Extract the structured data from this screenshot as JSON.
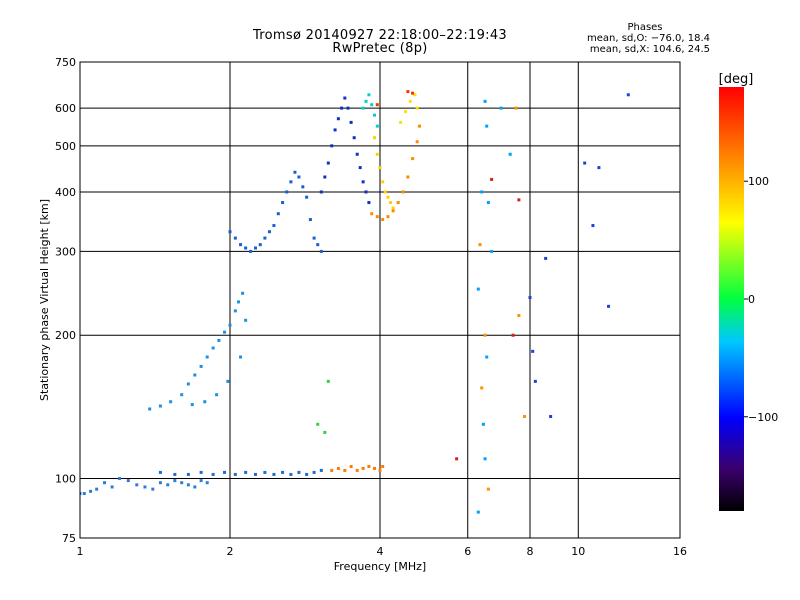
{
  "header": {
    "title": "Tromsø 20140927 22:18:00–22:19:43",
    "subtitle": "RwPretec (8p)"
  },
  "stats": {
    "heading": "Phases",
    "line_o": "mean, sd,O: −76.0, 18.4",
    "line_x": "mean, sd,X: 104.6, 24.5"
  },
  "chart_data": {
    "type": "scatter",
    "xlabel": "Frequency [MHz]",
    "ylabel": "Stationary phase Virtual Height [km]",
    "x_scale": "log",
    "y_scale": "log",
    "xlim": [
      1,
      16
    ],
    "ylim": [
      75,
      750
    ],
    "x_ticks": [
      1,
      2,
      4,
      6,
      8,
      10,
      16
    ],
    "x_tick_labels": [
      "1",
      "2",
      "4",
      "6",
      "8",
      "10",
      "16"
    ],
    "y_ticks": [
      75,
      100,
      200,
      300,
      400,
      500,
      600,
      750
    ],
    "y_tick_labels": [
      "75",
      "100",
      "200",
      "300",
      "400",
      "500",
      "600",
      "750"
    ],
    "x_gridlines": [
      2,
      4,
      6,
      8,
      10
    ],
    "y_gridlines": [
      100,
      200,
      300,
      400,
      500,
      600
    ],
    "colorbar": {
      "label": "[deg]",
      "range": [
        -180,
        180
      ],
      "ticks": [
        100,
        0,
        -100
      ],
      "tick_labels": [
        "100",
        "0",
        "−100"
      ],
      "colors": [
        "#000000",
        "#3a006e",
        "#0000ff",
        "#00c8ff",
        "#00ff40",
        "#ffff00",
        "#ff8000",
        "#ff0000"
      ]
    },
    "series": [
      {
        "color": "#2a7fd4",
        "points": [
          [
            1.0,
            93
          ],
          [
            1.02,
            93
          ],
          [
            1.05,
            94
          ],
          [
            1.08,
            95
          ],
          [
            1.12,
            98
          ],
          [
            1.16,
            96
          ],
          [
            1.2,
            100
          ],
          [
            1.25,
            99
          ],
          [
            1.3,
            97
          ],
          [
            1.35,
            96
          ],
          [
            1.4,
            95
          ],
          [
            1.45,
            98
          ],
          [
            1.5,
            97
          ],
          [
            1.55,
            99
          ],
          [
            1.6,
            98
          ],
          [
            1.65,
            97
          ],
          [
            1.7,
            96
          ],
          [
            1.75,
            99
          ],
          [
            1.8,
            98
          ]
        ]
      },
      {
        "color": "#1f6ccf",
        "points": [
          [
            1.45,
            103
          ],
          [
            1.55,
            102
          ],
          [
            1.65,
            102
          ],
          [
            1.75,
            103
          ],
          [
            1.85,
            102
          ],
          [
            1.95,
            103
          ],
          [
            2.05,
            102
          ],
          [
            2.15,
            103
          ],
          [
            2.25,
            102
          ],
          [
            2.35,
            103
          ],
          [
            2.45,
            102
          ],
          [
            2.55,
            103
          ],
          [
            2.65,
            102
          ],
          [
            2.75,
            103
          ],
          [
            2.85,
            102
          ],
          [
            2.95,
            103
          ],
          [
            3.05,
            104
          ]
        ]
      },
      {
        "color": "#ff7a00",
        "points": [
          [
            3.2,
            104
          ],
          [
            3.3,
            105
          ],
          [
            3.4,
            104
          ],
          [
            3.5,
            106
          ],
          [
            3.6,
            104
          ],
          [
            3.7,
            105
          ],
          [
            3.8,
            106
          ],
          [
            3.9,
            105
          ],
          [
            4.0,
            104
          ],
          [
            4.05,
            106
          ]
        ]
      },
      {
        "color": "#1e90e0",
        "points": [
          [
            1.38,
            140
          ],
          [
            1.45,
            142
          ],
          [
            1.52,
            145
          ],
          [
            1.6,
            150
          ],
          [
            1.65,
            158
          ],
          [
            1.7,
            165
          ],
          [
            1.75,
            172
          ],
          [
            1.8,
            180
          ],
          [
            1.85,
            188
          ],
          [
            1.9,
            195
          ],
          [
            1.95,
            203
          ],
          [
            2.0,
            210
          ],
          [
            2.05,
            225
          ],
          [
            2.08,
            235
          ],
          [
            2.12,
            245
          ],
          [
            2.15,
            215
          ],
          [
            2.1,
            180
          ],
          [
            1.98,
            160
          ],
          [
            1.88,
            150
          ],
          [
            1.78,
            145
          ],
          [
            1.68,
            143
          ]
        ]
      },
      {
        "color": "#1a5fd0",
        "points": [
          [
            2.0,
            330
          ],
          [
            2.05,
            320
          ],
          [
            2.1,
            310
          ],
          [
            2.15,
            305
          ],
          [
            2.2,
            300
          ],
          [
            2.25,
            305
          ],
          [
            2.3,
            310
          ],
          [
            2.35,
            320
          ],
          [
            2.4,
            330
          ],
          [
            2.45,
            340
          ],
          [
            2.5,
            360
          ],
          [
            2.55,
            380
          ],
          [
            2.6,
            400
          ],
          [
            2.65,
            420
          ],
          [
            2.7,
            440
          ],
          [
            2.75,
            430
          ],
          [
            2.8,
            410
          ],
          [
            2.85,
            390
          ],
          [
            2.9,
            350
          ],
          [
            2.95,
            320
          ],
          [
            3.0,
            310
          ],
          [
            3.05,
            300
          ]
        ]
      },
      {
        "color": "#1030c0",
        "points": [
          [
            3.05,
            400
          ],
          [
            3.1,
            430
          ],
          [
            3.15,
            460
          ],
          [
            3.2,
            500
          ],
          [
            3.25,
            540
          ],
          [
            3.3,
            570
          ],
          [
            3.35,
            600
          ],
          [
            3.4,
            630
          ],
          [
            3.45,
            600
          ],
          [
            3.5,
            560
          ],
          [
            3.55,
            520
          ],
          [
            3.6,
            480
          ],
          [
            3.65,
            450
          ],
          [
            3.7,
            420
          ],
          [
            3.75,
            400
          ],
          [
            3.8,
            380
          ]
        ]
      },
      {
        "color": "#00d0c8",
        "points": [
          [
            3.7,
            600
          ],
          [
            3.75,
            620
          ],
          [
            3.8,
            640
          ],
          [
            3.85,
            610
          ],
          [
            3.9,
            580
          ],
          [
            3.95,
            550
          ]
        ]
      },
      {
        "color": "#ffd000",
        "points": [
          [
            3.9,
            520
          ],
          [
            3.95,
            480
          ],
          [
            4.0,
            450
          ],
          [
            4.05,
            420
          ],
          [
            4.1,
            400
          ],
          [
            4.15,
            390
          ],
          [
            4.2,
            380
          ],
          [
            4.25,
            370
          ]
        ]
      },
      {
        "color": "#ff8a00",
        "points": [
          [
            3.85,
            360
          ],
          [
            3.95,
            355
          ],
          [
            4.05,
            350
          ],
          [
            4.15,
            355
          ],
          [
            4.25,
            365
          ],
          [
            4.35,
            380
          ],
          [
            4.45,
            400
          ],
          [
            4.55,
            430
          ],
          [
            4.65,
            470
          ],
          [
            4.75,
            510
          ],
          [
            4.8,
            550
          ]
        ]
      },
      {
        "color": "#ffe000",
        "points": [
          [
            4.4,
            560
          ],
          [
            4.5,
            590
          ],
          [
            4.6,
            620
          ],
          [
            4.7,
            640
          ],
          [
            4.75,
            600
          ]
        ]
      },
      {
        "color": "#ff3000",
        "points": [
          [
            4.55,
            650
          ],
          [
            4.65,
            645
          ],
          [
            3.95,
            610
          ]
        ]
      },
      {
        "color": "#00a0ff",
        "points": [
          [
            6.3,
            250
          ],
          [
            6.4,
            400
          ],
          [
            6.5,
            620
          ],
          [
            6.55,
            550
          ],
          [
            6.6,
            380
          ],
          [
            6.7,
            300
          ],
          [
            7.0,
            600
          ],
          [
            7.3,
            480
          ],
          [
            6.45,
            130
          ],
          [
            6.5,
            110
          ],
          [
            6.3,
            85
          ],
          [
            6.55,
            180
          ]
        ]
      },
      {
        "color": "#ff9000",
        "points": [
          [
            6.35,
            310
          ],
          [
            6.5,
            200
          ],
          [
            6.6,
            95
          ],
          [
            7.5,
            600
          ],
          [
            7.6,
            220
          ],
          [
            7.8,
            135
          ],
          [
            6.4,
            155
          ]
        ]
      },
      {
        "color": "#2040d0",
        "points": [
          [
            8.0,
            240
          ],
          [
            8.1,
            185
          ],
          [
            8.2,
            160
          ],
          [
            8.6,
            290
          ],
          [
            8.8,
            135
          ],
          [
            10.3,
            460
          ],
          [
            11.0,
            450
          ],
          [
            11.5,
            230
          ],
          [
            12.6,
            640
          ],
          [
            10.7,
            340
          ]
        ]
      },
      {
        "color": "#d02020",
        "points": [
          [
            7.4,
            200
          ],
          [
            7.6,
            385
          ],
          [
            5.7,
            110
          ],
          [
            6.7,
            425
          ]
        ]
      },
      {
        "color": "#30d040",
        "points": [
          [
            3.0,
            130
          ],
          [
            3.1,
            125
          ],
          [
            3.15,
            160
          ]
        ]
      }
    ]
  }
}
